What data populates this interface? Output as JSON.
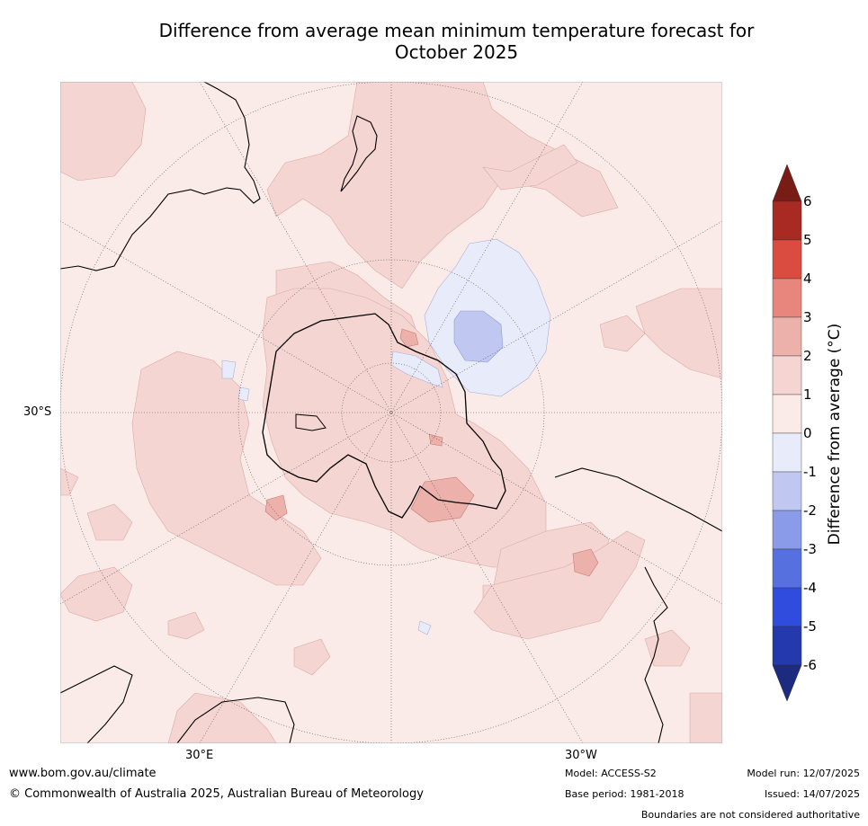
{
  "title_line1": "Difference from average mean minimum temperature forecast for",
  "title_line2": "October 2025",
  "map": {
    "lat_labels": [
      "30°S"
    ],
    "lon_labels": [
      "30°E",
      "30°W"
    ],
    "colors": {
      "anomaly_0_1": "#fbebe8",
      "anomaly_1_2": "#f4d5d2",
      "anomaly_2_3": "#ecb1ab",
      "anomaly_m1_0": "#e8ebfa",
      "anomaly_m2_m1": "#c0c8f2"
    }
  },
  "colorbar": {
    "title": "Difference from average (°C)",
    "ticks": [
      "6",
      "5",
      "4",
      "3",
      "2",
      "1",
      "0",
      "-1",
      "-2",
      "-3",
      "-4",
      "-5",
      "-6"
    ],
    "colors": [
      "#7a1c16",
      "#a92a23",
      "#da4b40",
      "#e8857d",
      "#ecb1ab",
      "#f4d5d2",
      "#fbebe8",
      "#e8ebfa",
      "#c0c8f2",
      "#8a9be9",
      "#5770e0",
      "#2f4cde",
      "#243aac",
      "#1c2a80"
    ]
  },
  "footer": {
    "website": "www.bom.gov.au/climate",
    "copyright": "© Commonwealth of Australia 2025, Australian Bureau of Meteorology",
    "model": "Model: ACCESS-S2",
    "base_period": "Base period: 1981-2018",
    "model_run": "Model run: 12/07/2025",
    "issued": "Issued: 14/07/2025",
    "disclaimer": "Boundaries are not considered authoritative"
  }
}
